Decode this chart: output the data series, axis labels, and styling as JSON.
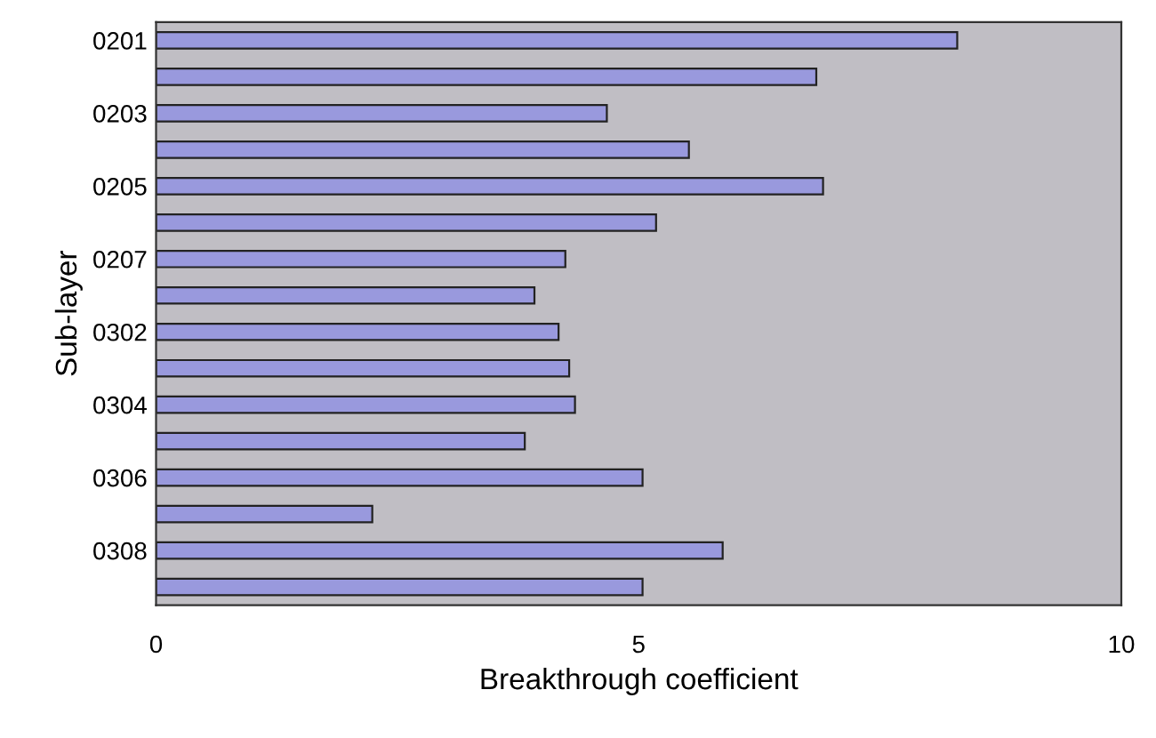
{
  "chart_data": {
    "type": "bar",
    "orientation": "horizontal",
    "xlabel": "Breakthrough coefficient",
    "ylabel": "Sub-layer",
    "categories": [
      "0201",
      null,
      "0203",
      null,
      "0205",
      null,
      "0207",
      null,
      "0302",
      null,
      "0304",
      null,
      "0306",
      null,
      "0308",
      null
    ],
    "values": [
      8.3,
      6.84,
      4.67,
      5.52,
      6.91,
      5.18,
      4.24,
      3.92,
      4.17,
      4.28,
      4.34,
      3.82,
      5.04,
      2.24,
      5.87,
      5.04
    ],
    "color": "#9999dd",
    "xlim": [
      0,
      10
    ],
    "xticks": [
      0,
      5,
      10
    ],
    "grid": false,
    "legend": false
  }
}
